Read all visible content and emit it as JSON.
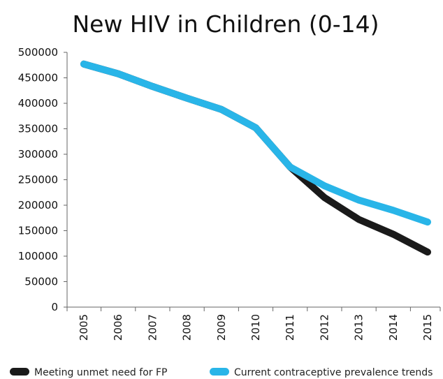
{
  "chart_data": {
    "type": "line",
    "title": "New HIV in Children (0-14)",
    "xlabel": "",
    "ylabel": "",
    "x": [
      "2005",
      "2006",
      "2007",
      "2008",
      "2009",
      "2010",
      "2011",
      "2012",
      "2013",
      "2014",
      "2015"
    ],
    "ylim": [
      0,
      500000
    ],
    "yticks": [
      "0",
      "50000",
      "100000",
      "150000",
      "200000",
      "250000",
      "300000",
      "350000",
      "400000",
      "450000",
      "500000"
    ],
    "grid": false,
    "legend_position": "bottom",
    "series": [
      {
        "name": "Meeting unmet need for FP",
        "color": "#1a1a1a",
        "values": [
          477000,
          458000,
          433000,
          410000,
          388000,
          352000,
          275000,
          215000,
          172000,
          143000,
          108000
        ]
      },
      {
        "name": "Current contraceptive prevalence trends",
        "color": "#29b5e8",
        "values": [
          477000,
          458000,
          433000,
          410000,
          388000,
          352000,
          275000,
          238000,
          210000,
          190000,
          167000
        ]
      }
    ]
  }
}
